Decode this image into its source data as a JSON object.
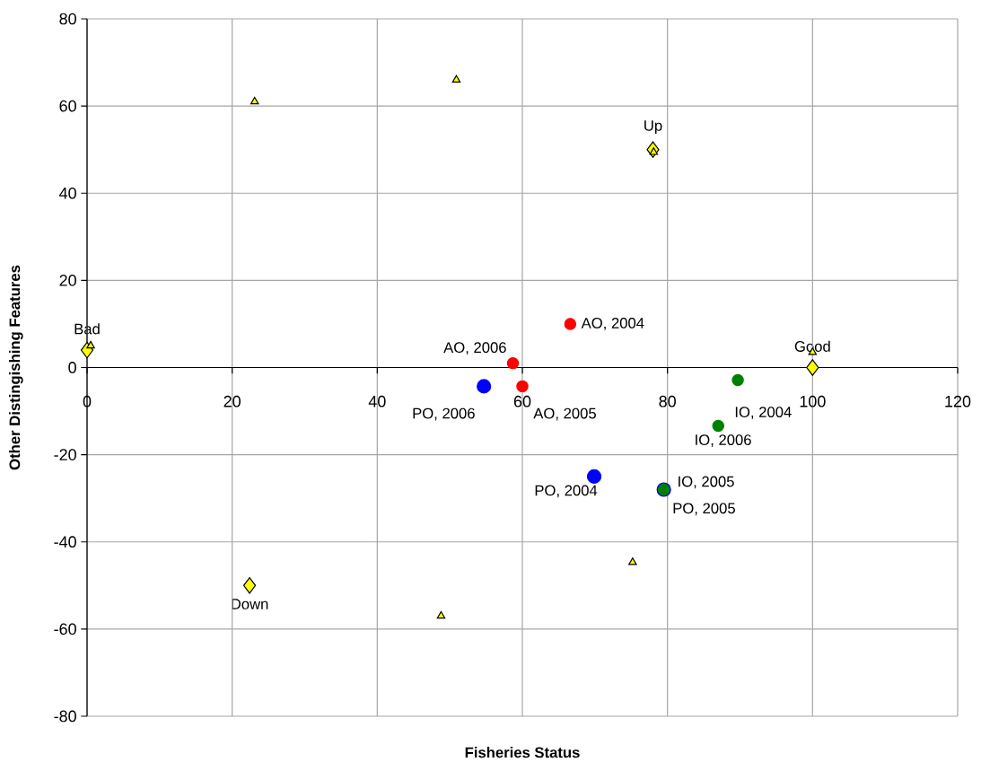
{
  "chart_data": {
    "type": "scatter",
    "xlabel": "Fisheries Status",
    "ylabel": "Other Distingishing Features",
    "xlim": [
      0,
      120
    ],
    "ylim": [
      -80,
      80
    ],
    "xticks": [
      0,
      20,
      40,
      60,
      80,
      100,
      120
    ],
    "yticks": [
      -80,
      -60,
      -40,
      -20,
      0,
      20,
      40,
      60,
      80
    ],
    "grid": true,
    "series": [
      {
        "color": "#ffff00",
        "marker": "diamond",
        "x": [
          0,
          78,
          100,
          22.4
        ],
        "values": [
          4,
          50,
          0,
          -50
        ]
      },
      {
        "color": "#ffff00",
        "marker": "triangle",
        "x": [
          0.5,
          23.1,
          50.9,
          78.1,
          100,
          75.2,
          48.8
        ],
        "values": [
          5,
          61,
          66,
          49.4,
          3.5,
          -44.7,
          -57
        ]
      },
      {
        "color": "#ff0000",
        "marker": "circle",
        "x": [
          66.6,
          60,
          58.7
        ],
        "values": [
          10,
          -4.3,
          1
        ]
      },
      {
        "color": "#0000ff",
        "marker": "circle",
        "x": [
          69.9,
          79.5,
          54.7
        ],
        "values": [
          -25,
          -28,
          -4.3
        ]
      },
      {
        "color": "#008000",
        "marker": "circle",
        "x": [
          89.7,
          79.5,
          87
        ],
        "values": [
          -2.9,
          -28,
          -13.4
        ]
      }
    ],
    "annotations": [
      {
        "text": "Bad",
        "x": 0,
        "y": 4
      },
      {
        "text": "Up",
        "x": 78,
        "y": 50
      },
      {
        "text": "Good",
        "x": 100,
        "y": 0
      },
      {
        "text": "Down",
        "x": 22.4,
        "y": -50
      },
      {
        "text": "AO, 2004",
        "x": 66.6,
        "y": 10
      },
      {
        "text": "AO, 2005",
        "x": 60,
        "y": -4.3
      },
      {
        "text": "AO, 2006",
        "x": 58.7,
        "y": 1
      },
      {
        "text": "PO, 2004",
        "x": 69.9,
        "y": -25
      },
      {
        "text": "PO, 2005",
        "x": 79.5,
        "y": -28
      },
      {
        "text": "PO, 2006",
        "x": 54.7,
        "y": -4.3
      },
      {
        "text": "IO, 2004",
        "x": 89.7,
        "y": -2.9
      },
      {
        "text": "IO, 2005",
        "x": 79.5,
        "y": -28
      },
      {
        "text": "IO, 2006",
        "x": 87,
        "y": -13.4
      }
    ]
  }
}
